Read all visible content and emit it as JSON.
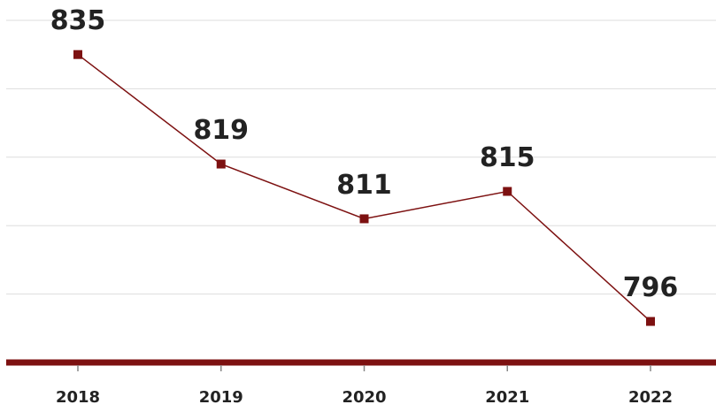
{
  "chart_data": {
    "type": "line",
    "categories": [
      "2018",
      "2019",
      "2020",
      "2021",
      "2022"
    ],
    "values": [
      835,
      819,
      811,
      815,
      796
    ],
    "color": "#7d1111",
    "ylim": [
      790,
      840
    ],
    "yticks": [
      800,
      810,
      820,
      830,
      840
    ],
    "grid": true
  }
}
